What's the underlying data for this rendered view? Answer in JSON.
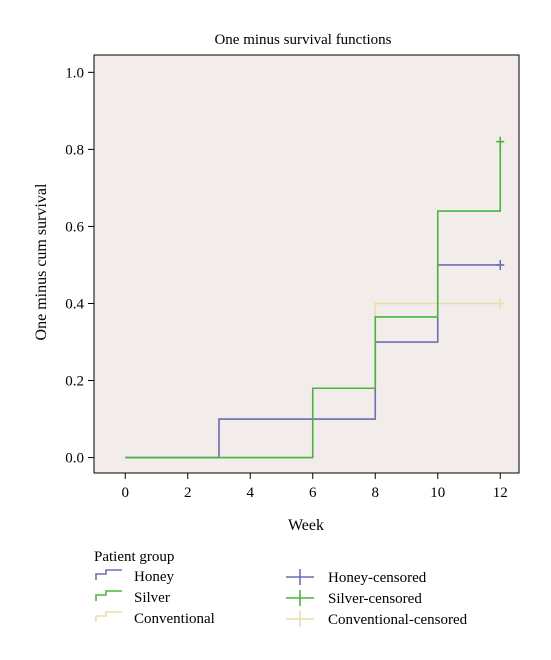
{
  "chart_data": {
    "type": "line",
    "title": "One minus survival functions",
    "xlabel": "Week",
    "ylabel": "One minus cum survival",
    "xlim": [
      -1,
      12.6
    ],
    "ylim": [
      -0.04,
      1.045
    ],
    "xticks": [
      0,
      2,
      4,
      6,
      8,
      10,
      12
    ],
    "yticks": [
      0.0,
      0.2,
      0.4,
      0.6,
      0.8,
      1.0
    ],
    "ytick_labels": [
      "0.0",
      "0.2",
      "0.4",
      "0.6",
      "0.8",
      "1.0"
    ],
    "grid": false,
    "plot_background": "#f2ecea",
    "step_function": true,
    "series": [
      {
        "name": "Honey",
        "color": "#6b6fb8",
        "x": [
          0,
          3,
          8,
          10,
          12
        ],
        "y": [
          0.0,
          0.1,
          0.3,
          0.5,
          0.5
        ],
        "censored": {
          "name": "Honey-censored",
          "x": [
            12
          ],
          "y": [
            0.5
          ]
        }
      },
      {
        "name": "Silver",
        "color": "#4db33d",
        "x": [
          0,
          6,
          8,
          10,
          12
        ],
        "y": [
          0.0,
          0.18,
          0.365,
          0.64,
          0.82
        ],
        "censored": {
          "name": "Silver-censored",
          "x": [
            12
          ],
          "y": [
            0.82
          ]
        }
      },
      {
        "name": "Conventional",
        "color": "#e8dfa8",
        "x": [
          0,
          3,
          8,
          12
        ],
        "y": [
          0.0,
          0.1,
          0.4,
          0.4
        ],
        "censored": {
          "name": "Conventional-censored",
          "x": [
            12
          ],
          "y": [
            0.4
          ]
        }
      }
    ],
    "legend": {
      "title": "Patient group",
      "placement": "bottom",
      "entries": [
        "Honey",
        "Silver",
        "Conventional",
        "Honey-censored",
        "Silver-censored",
        "Conventional-censored"
      ]
    }
  }
}
